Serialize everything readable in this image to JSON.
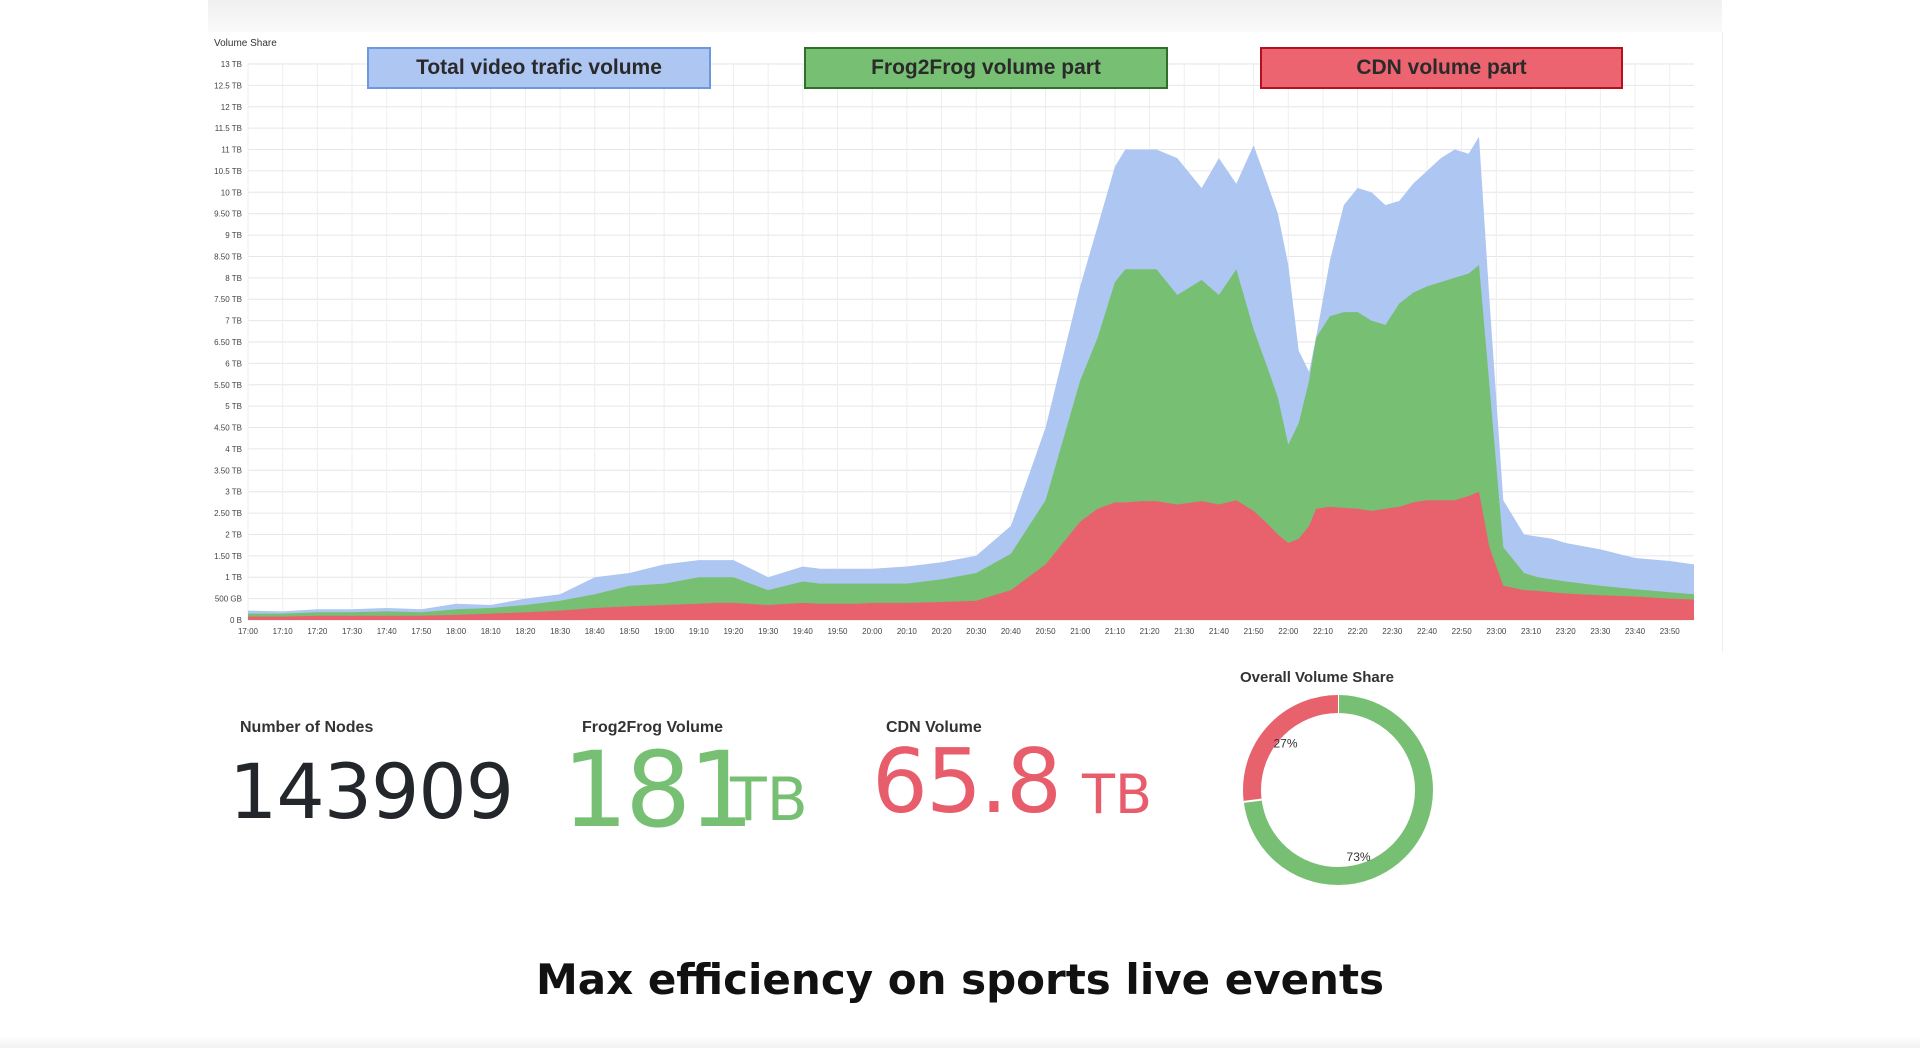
{
  "chart_data": {
    "type": "area",
    "title": "Volume Share",
    "legend": [
      "Total video trafic volume",
      "Frog2Frog volume part",
      "CDN volume part"
    ],
    "y_ticks": [
      "0 B",
      "500 GB",
      "1 TB",
      "1.50 TB",
      "2 TB",
      "2.50 TB",
      "3 TB",
      "3.50 TB",
      "4 TB",
      "4.50 TB",
      "5 TB",
      "5.50 TB",
      "6 TB",
      "6.50 TB",
      "7 TB",
      "7.50 TB",
      "8 TB",
      "8.50 TB",
      "9 TB",
      "9.50 TB",
      "10 TB",
      "10.5 TB",
      "11 TB",
      "11.5 TB",
      "12 TB",
      "12.5 TB",
      "13 TB"
    ],
    "ylim": [
      0,
      13
    ],
    "x_ticks": [
      "17:00",
      "17:10",
      "17:20",
      "17:30",
      "17:40",
      "17:50",
      "18:00",
      "18:10",
      "18:20",
      "18:30",
      "18:40",
      "18:50",
      "19:00",
      "19:10",
      "19:20",
      "19:30",
      "19:40",
      "19:50",
      "20:00",
      "20:10",
      "20:20",
      "20:30",
      "20:40",
      "20:50",
      "21:00",
      "21:10",
      "21:20",
      "21:30",
      "21:40",
      "21:50",
      "22:00",
      "22:10",
      "22:20",
      "22:30",
      "22:40",
      "22:50",
      "23:00",
      "23:10",
      "23:20",
      "23:30",
      "23:40",
      "23:50"
    ],
    "x_unit": "minutes since 17:00",
    "xlim": [
      0,
      417
    ],
    "series": [
      {
        "name": "Total video trafic volume",
        "color": "#aec6f2",
        "x": [
          0,
          10,
          20,
          30,
          40,
          50,
          60,
          70,
          80,
          90,
          100,
          110,
          120,
          130,
          135,
          140,
          150,
          160,
          165,
          170,
          175,
          180,
          190,
          200,
          210,
          220,
          230,
          240,
          245,
          250,
          253,
          258,
          262,
          268,
          275,
          280,
          285,
          290,
          294,
          297,
          300,
          303,
          306,
          308,
          312,
          316,
          320,
          324,
          328,
          332,
          336,
          340,
          344,
          348,
          352,
          355,
          358,
          362,
          368,
          372,
          376,
          380,
          390,
          400,
          410,
          417
        ],
        "values": [
          0.22,
          0.2,
          0.25,
          0.25,
          0.28,
          0.25,
          0.38,
          0.35,
          0.5,
          0.6,
          1.0,
          1.1,
          1.3,
          1.4,
          1.4,
          1.4,
          1.0,
          1.25,
          1.2,
          1.2,
          1.2,
          1.2,
          1.25,
          1.35,
          1.5,
          2.2,
          4.5,
          7.8,
          9.2,
          10.6,
          11.0,
          11.0,
          11.0,
          10.8,
          10.1,
          10.8,
          10.2,
          11.1,
          10.2,
          9.5,
          8.3,
          6.3,
          5.8,
          6.6,
          8.4,
          9.7,
          10.1,
          10.0,
          9.7,
          9.8,
          10.2,
          10.5,
          10.8,
          11.0,
          10.9,
          11.3,
          7.5,
          2.8,
          2.0,
          1.95,
          1.9,
          1.8,
          1.65,
          1.45,
          1.38,
          1.3
        ]
      },
      {
        "name": "Frog2Frog volume part",
        "color": "#77c073",
        "x": [
          0,
          10,
          20,
          30,
          40,
          50,
          60,
          70,
          80,
          90,
          100,
          110,
          120,
          130,
          135,
          140,
          150,
          160,
          165,
          170,
          175,
          180,
          190,
          200,
          210,
          220,
          230,
          240,
          245,
          250,
          253,
          258,
          262,
          268,
          275,
          280,
          285,
          290,
          294,
          297,
          300,
          303,
          306,
          308,
          312,
          316,
          320,
          324,
          328,
          332,
          336,
          340,
          344,
          348,
          352,
          355,
          358,
          362,
          368,
          372,
          376,
          380,
          390,
          400,
          410,
          417
        ],
        "values": [
          0.15,
          0.15,
          0.18,
          0.18,
          0.2,
          0.18,
          0.25,
          0.28,
          0.35,
          0.45,
          0.6,
          0.8,
          0.85,
          1.0,
          1.0,
          1.0,
          0.7,
          0.9,
          0.85,
          0.85,
          0.85,
          0.85,
          0.85,
          0.95,
          1.1,
          1.55,
          2.8,
          5.6,
          6.6,
          7.9,
          8.2,
          8.2,
          8.2,
          7.6,
          7.95,
          7.6,
          8.2,
          6.8,
          5.9,
          5.2,
          4.1,
          4.6,
          5.6,
          6.6,
          7.1,
          7.2,
          7.2,
          7.0,
          6.9,
          7.4,
          7.65,
          7.8,
          7.9,
          8.0,
          8.1,
          8.3,
          5.5,
          1.7,
          1.1,
          1.0,
          0.95,
          0.9,
          0.8,
          0.72,
          0.65,
          0.6
        ]
      },
      {
        "name": "CDN volume part",
        "color": "#e8626e",
        "x": [
          0,
          10,
          20,
          30,
          40,
          50,
          60,
          70,
          80,
          90,
          100,
          110,
          120,
          130,
          135,
          140,
          150,
          160,
          165,
          170,
          175,
          180,
          190,
          200,
          210,
          220,
          230,
          240,
          245,
          250,
          253,
          258,
          262,
          268,
          275,
          280,
          285,
          290,
          294,
          297,
          300,
          303,
          306,
          308,
          312,
          316,
          320,
          324,
          328,
          332,
          336,
          340,
          344,
          348,
          352,
          355,
          358,
          362,
          368,
          372,
          376,
          380,
          390,
          400,
          410,
          417
        ],
        "values": [
          0.08,
          0.08,
          0.1,
          0.1,
          0.1,
          0.1,
          0.12,
          0.15,
          0.18,
          0.22,
          0.28,
          0.32,
          0.35,
          0.38,
          0.4,
          0.4,
          0.35,
          0.4,
          0.38,
          0.38,
          0.38,
          0.4,
          0.4,
          0.42,
          0.45,
          0.7,
          1.3,
          2.3,
          2.6,
          2.75,
          2.75,
          2.78,
          2.78,
          2.7,
          2.78,
          2.7,
          2.8,
          2.55,
          2.25,
          2.0,
          1.8,
          1.9,
          2.2,
          2.6,
          2.65,
          2.62,
          2.6,
          2.55,
          2.6,
          2.65,
          2.75,
          2.8,
          2.8,
          2.8,
          2.9,
          3.0,
          1.7,
          0.8,
          0.7,
          0.68,
          0.65,
          0.62,
          0.58,
          0.55,
          0.5,
          0.48
        ]
      }
    ]
  },
  "stats": {
    "nodes_label": "Number of Nodes",
    "nodes_value": "143909",
    "f2f_label": "Frog2Frog Volume",
    "f2f_value": "181",
    "f2f_unit": "TB",
    "cdn_label": "CDN Volume",
    "cdn_value": "65.8",
    "cdn_unit": "TB"
  },
  "donut": {
    "title": "Overall Volume Share",
    "slices": [
      {
        "name": "Frog2Frog",
        "percent": 73,
        "label": "73%",
        "color": "#77c073"
      },
      {
        "name": "CDN",
        "percent": 27,
        "label": "27%",
        "color": "#e8626e"
      }
    ]
  },
  "caption": "Max efficiency on sports live events"
}
